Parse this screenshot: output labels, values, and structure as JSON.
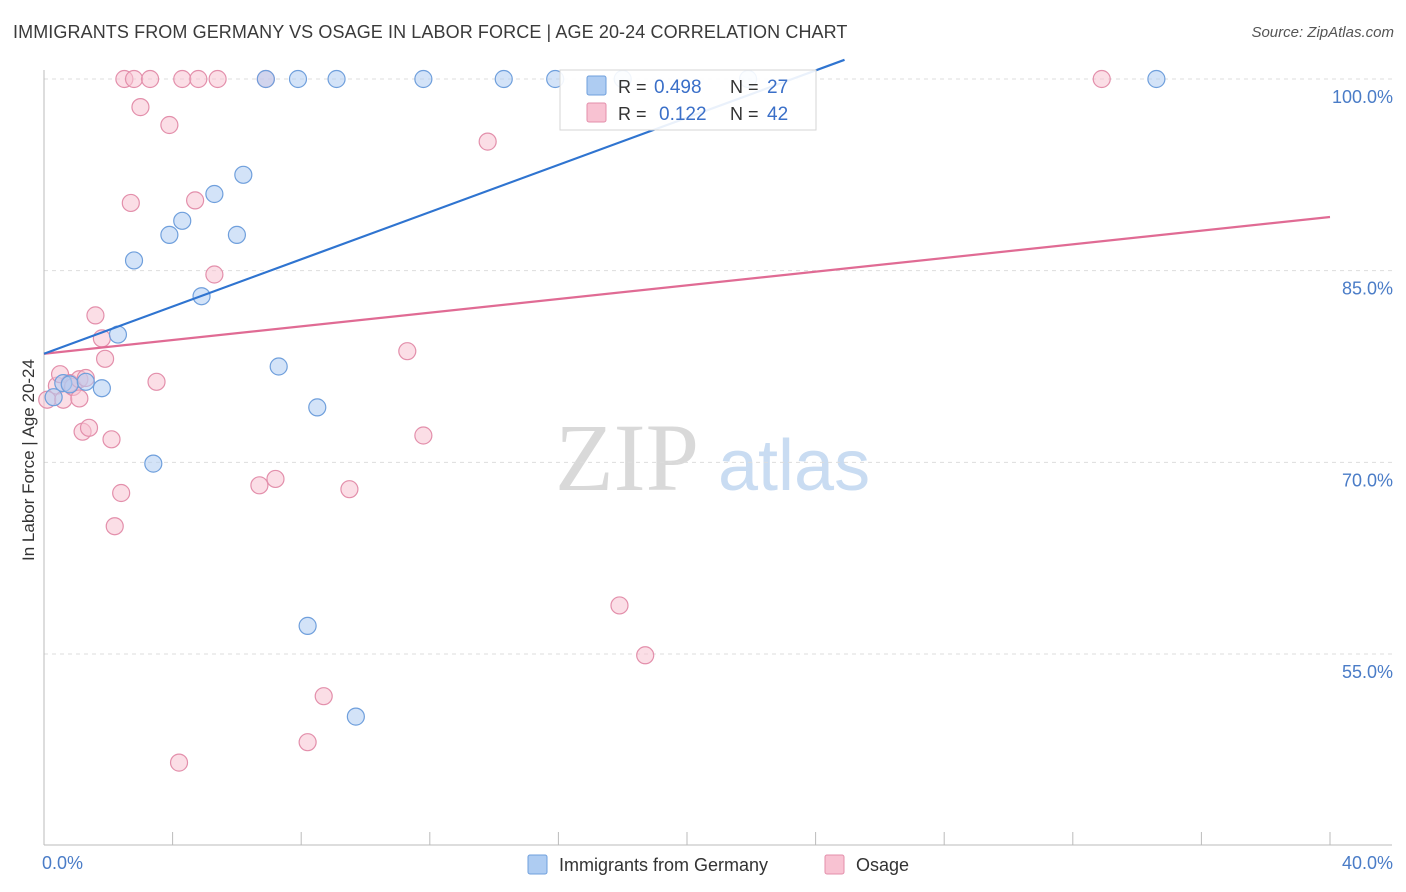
{
  "header": {
    "title": "IMMIGRANTS FROM GERMANY VS OSAGE IN LABOR FORCE | AGE 20-24 CORRELATION CHART",
    "source": "Source: ZipAtlas.com"
  },
  "watermark": {
    "zip": "ZIP",
    "atlas": "atlas"
  },
  "colors": {
    "blue_fill": "#aeccf2",
    "blue_stroke": "#6f9fdc",
    "blue_line": "#2f74d0",
    "pink_fill": "#f8c2d2",
    "pink_stroke": "#e38fab",
    "pink_line": "#e06b94",
    "grid": "#dddddd",
    "tick_text": "#4a7cc7"
  },
  "chart_data": {
    "type": "scatter",
    "ylabel": "In Labor Force | Age 20-24",
    "xlim": [
      0,
      40
    ],
    "ylim": [
      40,
      101.5
    ],
    "x_tick_labels": [
      {
        "value": 0,
        "label": "0.0%"
      },
      {
        "value": 40,
        "label": "40.0%"
      }
    ],
    "y_ticks": [
      {
        "value": 100,
        "label": "100.0%"
      },
      {
        "value": 85,
        "label": "85.0%"
      },
      {
        "value": 70,
        "label": "70.0%"
      },
      {
        "value": 55,
        "label": "55.0%"
      }
    ],
    "x_minor_ticks": [
      4,
      8,
      12,
      16,
      20,
      24,
      28,
      32,
      36,
      40
    ],
    "legend": {
      "position": "top-center",
      "rows": [
        {
          "r_label": "R =",
          "r_value": "0.498",
          "n_label": "N =",
          "n_value": "27"
        },
        {
          "r_label": "R =",
          "r_value": "0.122",
          "n_label": "N =",
          "n_value": "42"
        }
      ]
    },
    "bottom_legend": [
      "Immigrants from Germany",
      "Osage"
    ],
    "series": [
      {
        "name": "Immigrants from Germany",
        "color": "blue",
        "trend": {
          "x0": 0,
          "y0": 78.5,
          "x1": 24.9,
          "y1": 101.5
        },
        "points": [
          [
            0.3,
            75.1
          ],
          [
            0.6,
            76.2
          ],
          [
            0.8,
            76.1
          ],
          [
            1.3,
            76.3
          ],
          [
            1.8,
            75.8
          ],
          [
            2.3,
            80.0
          ],
          [
            2.8,
            85.8
          ],
          [
            3.4,
            69.9
          ],
          [
            3.9,
            87.8
          ],
          [
            4.3,
            88.9
          ],
          [
            4.9,
            83.0
          ],
          [
            5.3,
            91.0
          ],
          [
            6.0,
            87.8
          ],
          [
            6.2,
            92.5
          ],
          [
            6.9,
            100.0
          ],
          [
            7.3,
            77.5
          ],
          [
            7.9,
            100.0
          ],
          [
            8.2,
            57.2
          ],
          [
            8.5,
            74.3
          ],
          [
            9.1,
            100.0
          ],
          [
            9.7,
            50.1
          ],
          [
            11.8,
            100.0
          ],
          [
            14.3,
            100.0
          ],
          [
            15.9,
            100.0
          ],
          [
            18.0,
            100.0
          ],
          [
            21.9,
            100.0
          ],
          [
            34.6,
            100.0
          ]
        ]
      },
      {
        "name": "Osage",
        "color": "pink",
        "trend": {
          "x0": 0,
          "y0": 78.5,
          "x1": 40,
          "y1": 89.2
        },
        "points": [
          [
            0.1,
            74.9
          ],
          [
            0.4,
            76.0
          ],
          [
            0.5,
            76.9
          ],
          [
            0.6,
            74.9
          ],
          [
            0.8,
            76.2
          ],
          [
            0.9,
            75.9
          ],
          [
            1.1,
            75.0
          ],
          [
            1.1,
            76.5
          ],
          [
            1.2,
            72.4
          ],
          [
            1.3,
            76.6
          ],
          [
            1.4,
            72.7
          ],
          [
            1.6,
            81.5
          ],
          [
            1.8,
            79.7
          ],
          [
            1.9,
            78.1
          ],
          [
            2.1,
            71.8
          ],
          [
            2.2,
            65.0
          ],
          [
            2.4,
            67.6
          ],
          [
            2.5,
            100.0
          ],
          [
            2.7,
            90.3
          ],
          [
            2.8,
            100.0
          ],
          [
            3.0,
            97.8
          ],
          [
            3.3,
            100.0
          ],
          [
            3.5,
            76.3
          ],
          [
            3.9,
            96.4
          ],
          [
            4.2,
            46.5
          ],
          [
            4.3,
            100.0
          ],
          [
            4.7,
            90.5
          ],
          [
            4.8,
            100.0
          ],
          [
            5.3,
            84.7
          ],
          [
            5.4,
            100.0
          ],
          [
            6.7,
            68.2
          ],
          [
            6.9,
            100.0
          ],
          [
            7.2,
            68.7
          ],
          [
            8.2,
            48.1
          ],
          [
            8.7,
            51.7
          ],
          [
            9.5,
            67.9
          ],
          [
            11.3,
            78.7
          ],
          [
            11.8,
            72.1
          ],
          [
            13.8,
            95.1
          ],
          [
            17.9,
            58.8
          ],
          [
            18.7,
            54.9
          ],
          [
            32.9,
            100.0
          ]
        ]
      }
    ]
  }
}
